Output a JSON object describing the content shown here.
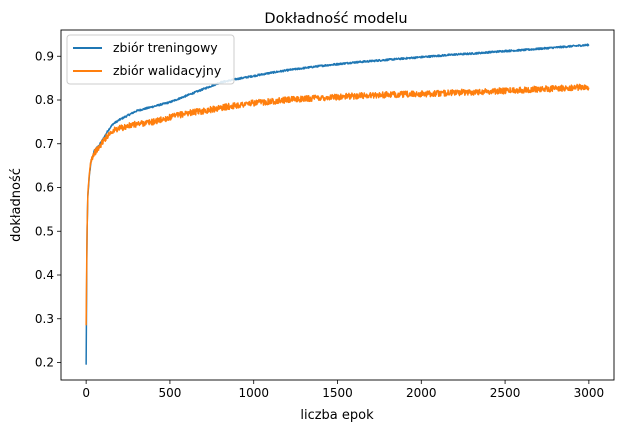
{
  "chart_data": {
    "type": "line",
    "title": "Dokładność modelu",
    "xlabel": "liczba epok",
    "ylabel": "dokładność",
    "xlim": [
      -150,
      3150
    ],
    "ylim": [
      0.16,
      0.96
    ],
    "xticks": [
      0,
      500,
      1000,
      1500,
      2000,
      2500,
      3000
    ],
    "yticks": [
      0.2,
      0.3,
      0.4,
      0.5,
      0.6,
      0.7,
      0.8,
      0.9
    ],
    "grid": false,
    "legend_position": "upper-left",
    "series": [
      {
        "name": "zbiór treningowy",
        "color": "#1f77b4",
        "noise": 0.002,
        "x": [
          0,
          5,
          10,
          20,
          30,
          50,
          75,
          100,
          130,
          160,
          200,
          250,
          300,
          400,
          500,
          600,
          700,
          800,
          900,
          1000,
          1100,
          1200,
          1300,
          1400,
          1500,
          1600,
          1700,
          1800,
          1900,
          2000,
          2100,
          2200,
          2300,
          2400,
          2500,
          2600,
          2700,
          2800,
          2900,
          3000
        ],
        "y": [
          0.195,
          0.49,
          0.58,
          0.63,
          0.66,
          0.685,
          0.695,
          0.71,
          0.73,
          0.745,
          0.755,
          0.765,
          0.775,
          0.785,
          0.795,
          0.81,
          0.825,
          0.84,
          0.848,
          0.855,
          0.862,
          0.868,
          0.873,
          0.878,
          0.882,
          0.886,
          0.889,
          0.892,
          0.895,
          0.898,
          0.901,
          0.904,
          0.906,
          0.909,
          0.912,
          0.914,
          0.917,
          0.92,
          0.923,
          0.926
        ]
      },
      {
        "name": "zbiór walidacyjny",
        "color": "#ff7f0e",
        "noise": 0.007,
        "x": [
          0,
          5,
          10,
          20,
          30,
          50,
          75,
          100,
          130,
          160,
          200,
          250,
          300,
          400,
          500,
          600,
          700,
          800,
          900,
          1000,
          1100,
          1200,
          1300,
          1400,
          1500,
          1600,
          1700,
          1800,
          1900,
          2000,
          2100,
          2200,
          2300,
          2400,
          2500,
          2600,
          2700,
          2800,
          2900,
          3000
        ],
        "y": [
          0.285,
          0.49,
          0.58,
          0.635,
          0.665,
          0.68,
          0.69,
          0.705,
          0.72,
          0.73,
          0.735,
          0.74,
          0.745,
          0.75,
          0.76,
          0.77,
          0.775,
          0.782,
          0.788,
          0.793,
          0.797,
          0.8,
          0.803,
          0.805,
          0.807,
          0.809,
          0.811,
          0.812,
          0.813,
          0.814,
          0.815,
          0.817,
          0.818,
          0.82,
          0.821,
          0.823,
          0.825,
          0.826,
          0.828,
          0.83
        ]
      }
    ]
  }
}
